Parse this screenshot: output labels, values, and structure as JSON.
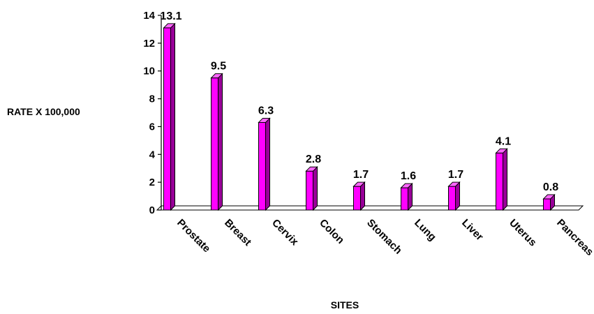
{
  "chart_data": {
    "type": "bar",
    "title": "",
    "xlabel": "SITES",
    "ylabel": "RATE X 100,000",
    "categories": [
      "Prostate",
      "Breast",
      "Cervix",
      "Colon",
      "Stomach",
      "Lung",
      "Liver",
      "Uterus",
      "Pancreas"
    ],
    "values": [
      13.1,
      9.5,
      6.3,
      2.8,
      1.7,
      1.6,
      1.7,
      4.1,
      0.8
    ],
    "data_labels": [
      "13.1",
      "9.5",
      "6.3",
      "2.8",
      "1.7",
      "1.6",
      "1.7",
      "4.1",
      "0.8"
    ],
    "ylim": [
      0,
      14
    ],
    "yticks": [
      0,
      2,
      4,
      6,
      8,
      10,
      12,
      14
    ],
    "grid": false,
    "legend": "none",
    "bar_color": "#ff00ff",
    "bar_side_color": "#990099",
    "bar_top_color": "#ff66ff"
  }
}
